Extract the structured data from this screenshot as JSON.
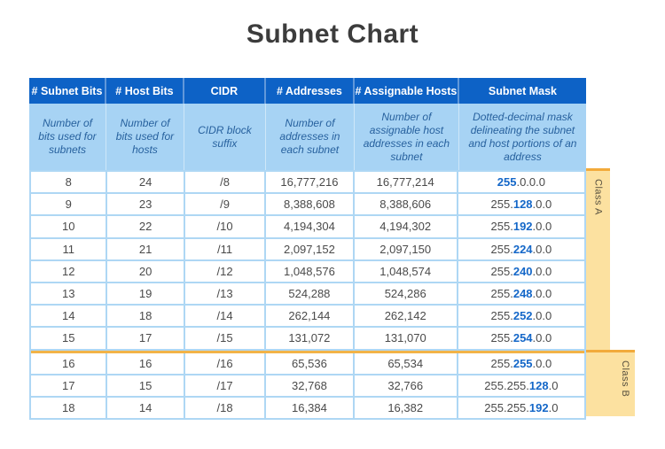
{
  "chart_data": {
    "type": "table",
    "title": "Subnet Chart",
    "columns": [
      {
        "label": "# Subnet Bits",
        "description": "Number of bits used for subnets"
      },
      {
        "label": "# Host Bits",
        "description": "Number of bits used for hosts"
      },
      {
        "label": "CIDR",
        "description": "CIDR block suffix"
      },
      {
        "label": "# Addresses",
        "description": "Number of addresses in each subnet"
      },
      {
        "label": "# Assignable Hosts",
        "description": "Number of assignable host addresses in each subnet"
      },
      {
        "label": "Subnet Mask",
        "description": "Dotted-decimal mask delineating the subnet and host portions of an address"
      }
    ],
    "groups": [
      {
        "label": "Class A"
      },
      {
        "label": "Class B"
      }
    ],
    "rows": [
      {
        "subnet_bits": "8",
        "host_bits": "24",
        "cidr": "/8",
        "addresses": "16,777,216",
        "assignable_hosts": "16,777,214",
        "mask": {
          "pre": "",
          "highlight": "255",
          "post": ".0.0.0"
        },
        "group": "A"
      },
      {
        "subnet_bits": "9",
        "host_bits": "23",
        "cidr": "/9",
        "addresses": "8,388,608",
        "assignable_hosts": "8,388,606",
        "mask": {
          "pre": "255.",
          "highlight": "128",
          "post": ".0.0"
        },
        "group": "A"
      },
      {
        "subnet_bits": "10",
        "host_bits": "22",
        "cidr": "/10",
        "addresses": "4,194,304",
        "assignable_hosts": "4,194,302",
        "mask": {
          "pre": "255.",
          "highlight": "192",
          "post": ".0.0"
        },
        "group": "A"
      },
      {
        "subnet_bits": "11",
        "host_bits": "21",
        "cidr": "/11",
        "addresses": "2,097,152",
        "assignable_hosts": "2,097,150",
        "mask": {
          "pre": "255.",
          "highlight": "224",
          "post": ".0.0"
        },
        "group": "A"
      },
      {
        "subnet_bits": "12",
        "host_bits": "20",
        "cidr": "/12",
        "addresses": "1,048,576",
        "assignable_hosts": "1,048,574",
        "mask": {
          "pre": "255.",
          "highlight": "240",
          "post": ".0.0"
        },
        "group": "A"
      },
      {
        "subnet_bits": "13",
        "host_bits": "19",
        "cidr": "/13",
        "addresses": "524,288",
        "assignable_hosts": "524,286",
        "mask": {
          "pre": "255.",
          "highlight": "248",
          "post": ".0.0"
        },
        "group": "A"
      },
      {
        "subnet_bits": "14",
        "host_bits": "18",
        "cidr": "/14",
        "addresses": "262,144",
        "assignable_hosts": "262,142",
        "mask": {
          "pre": "255.",
          "highlight": "252",
          "post": ".0.0"
        },
        "group": "A"
      },
      {
        "subnet_bits": "15",
        "host_bits": "17",
        "cidr": "/15",
        "addresses": "131,072",
        "assignable_hosts": "131,070",
        "mask": {
          "pre": "255.",
          "highlight": "254",
          "post": ".0.0"
        },
        "group": "A"
      },
      {
        "subnet_bits": "16",
        "host_bits": "16",
        "cidr": "/16",
        "addresses": "65,536",
        "assignable_hosts": "65,534",
        "mask": {
          "pre": "255.",
          "highlight": "255",
          "post": ".0.0"
        },
        "group": "B"
      },
      {
        "subnet_bits": "17",
        "host_bits": "15",
        "cidr": "/17",
        "addresses": "32,768",
        "assignable_hosts": "32,766",
        "mask": {
          "pre": "255.255.",
          "highlight": "128",
          "post": ".0"
        },
        "group": "B"
      },
      {
        "subnet_bits": "18",
        "host_bits": "14",
        "cidr": "/18",
        "addresses": "16,384",
        "assignable_hosts": "16,382",
        "mask": {
          "pre": "255.255.",
          "highlight": "192",
          "post": ".0"
        },
        "group": "B"
      }
    ],
    "layout_hints": {
      "highlighted_octet_style": "blue bold digit within subnet mask",
      "group_divider": "orange horizontal rule between /15 and /16 rows"
    }
  },
  "colors": {
    "header_bg": "#0d62c6",
    "subheader_bg": "#a7d3f4",
    "subheader_text": "#27619e",
    "grid_line": "#aed7f4",
    "body_text": "#4a4a4a",
    "mask_highlight": "#1467c8",
    "tab_bg": "#fce1a0",
    "tab_top_edge": "#f2aa3b",
    "group_divider": "#f2b348",
    "title_text": "#3c3c3c"
  }
}
